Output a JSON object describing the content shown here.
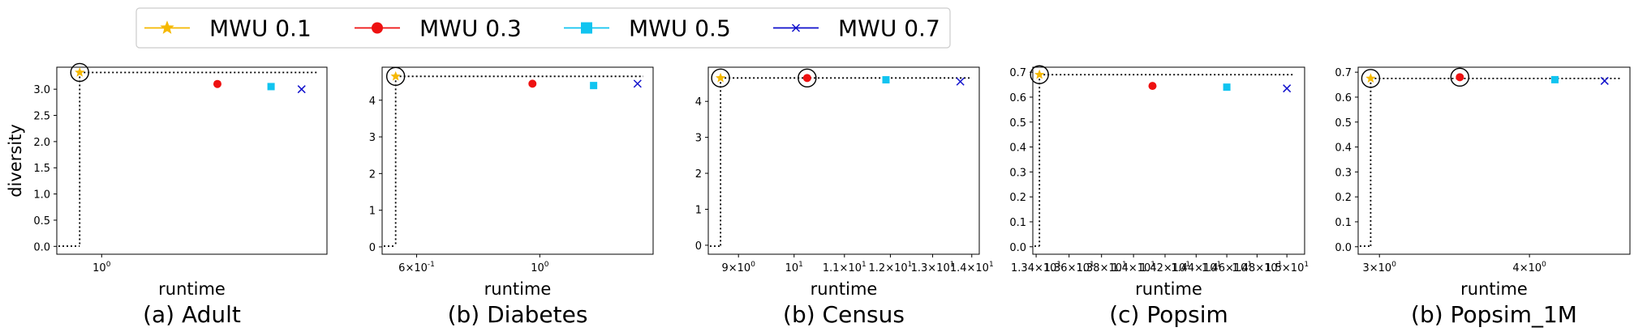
{
  "legend": [
    {
      "name": "MWU 0.1",
      "color": "#f5b800",
      "marker": "star"
    },
    {
      "name": "MWU 0.3",
      "color": "#ee1111",
      "marker": "circle"
    },
    {
      "name": "MWU 0.5",
      "color": "#11c4f0",
      "marker": "square"
    },
    {
      "name": "MWU 0.7",
      "color": "#1010cc",
      "marker": "x"
    }
  ],
  "chart_data": [
    {
      "type": "scatter",
      "caption": "(a) Adult",
      "xlabel": "runtime",
      "ylabel": "diversity",
      "xscale": "log",
      "xlim": [
        0.92,
        1.52
      ],
      "ylim": [
        -0.15,
        3.42
      ],
      "xticks": [
        {
          "value": 1.0,
          "label": "10^0"
        }
      ],
      "yticks": [
        0.0,
        0.5,
        1.0,
        1.5,
        2.0,
        2.5,
        3.0
      ],
      "ytick_labels": [
        "0.0",
        "0.5",
        "1.0",
        "1.5",
        "2.0",
        "2.5",
        "3.0"
      ],
      "series": [
        {
          "name": "MWU 0.1",
          "x": [
            0.96
          ],
          "y": [
            3.32
          ]
        },
        {
          "name": "MWU 0.3",
          "x": [
            1.24
          ],
          "y": [
            3.1
          ]
        },
        {
          "name": "MWU 0.5",
          "x": [
            1.37
          ],
          "y": [
            3.05
          ]
        },
        {
          "name": "MWU 0.7",
          "x": [
            1.45
          ],
          "y": [
            3.0
          ]
        }
      ],
      "highlight": [
        {
          "x": 0.96,
          "y": 3.32
        }
      ],
      "pareto": {
        "x": 0.96,
        "y": 3.32
      }
    },
    {
      "type": "scatter",
      "caption": "(b) Diabetes",
      "xlabel": "runtime",
      "ylabel": "",
      "xscale": "log",
      "xlim": [
        0.52,
        1.6
      ],
      "ylim": [
        -0.2,
        4.9
      ],
      "xticks": [
        {
          "value": 0.6,
          "label": "6×10^-1"
        },
        {
          "value": 1.0,
          "label": "10^0"
        }
      ],
      "yticks": [
        0,
        1,
        2,
        3,
        4
      ],
      "ytick_labels": [
        "0",
        "1",
        "2",
        "3",
        "4"
      ],
      "series": [
        {
          "name": "MWU 0.1",
          "x": [
            0.55
          ],
          "y": [
            4.65
          ]
        },
        {
          "name": "MWU 0.3",
          "x": [
            0.97
          ],
          "y": [
            4.45
          ]
        },
        {
          "name": "MWU 0.5",
          "x": [
            1.25
          ],
          "y": [
            4.4
          ]
        },
        {
          "name": "MWU 0.7",
          "x": [
            1.5
          ],
          "y": [
            4.45
          ]
        }
      ],
      "highlight": [
        {
          "x": 0.55,
          "y": 4.65
        }
      ],
      "pareto": {
        "x": 0.55,
        "y": 4.65
      }
    },
    {
      "type": "scatter",
      "caption": "(b) Census",
      "xlabel": "runtime",
      "ylabel": "",
      "xscale": "log",
      "xlim": [
        8.5,
        14.2
      ],
      "ylim": [
        -0.25,
        4.95
      ],
      "xticks": [
        {
          "value": 9,
          "label": "9×10^0"
        },
        {
          "value": 10,
          "label": "10^1"
        },
        {
          "value": 11,
          "label": "1.1×10^1"
        },
        {
          "value": 12,
          "label": "1.2×10^1"
        },
        {
          "value": 13,
          "label": "1.3×10^1"
        },
        {
          "value": 14,
          "label": "1.4×10^1"
        }
      ],
      "yticks": [
        0,
        1,
        2,
        3,
        4
      ],
      "ytick_labels": [
        "0",
        "1",
        "2",
        "3",
        "4"
      ],
      "series": [
        {
          "name": "MWU 0.1",
          "x": [
            8.7
          ],
          "y": [
            4.65
          ]
        },
        {
          "name": "MWU 0.3",
          "x": [
            10.25
          ],
          "y": [
            4.65
          ]
        },
        {
          "name": "MWU 0.5",
          "x": [
            11.9
          ],
          "y": [
            4.6
          ]
        },
        {
          "name": "MWU 0.7",
          "x": [
            13.7
          ],
          "y": [
            4.55
          ]
        }
      ],
      "highlight": [
        {
          "x": 8.7,
          "y": 4.65
        },
        {
          "x": 10.25,
          "y": 4.65
        }
      ],
      "pareto": {
        "x": 8.7,
        "y": 4.65
      }
    },
    {
      "type": "scatter",
      "caption": "(c) Popsim",
      "xlabel": "runtime",
      "ylabel": "",
      "xscale": "log",
      "xlim": [
        13.38,
        15.12
      ],
      "ylim": [
        -0.03,
        0.72
      ],
      "xticks": [
        {
          "value": 13.4,
          "label": "1.34×10^1"
        },
        {
          "value": 13.6,
          "label": "1.36×10^1"
        },
        {
          "value": 13.8,
          "label": "1.38×10^1"
        },
        {
          "value": 14.0,
          "label": "1.4×10^1"
        },
        {
          "value": 14.2,
          "label": "1.42×10^1"
        },
        {
          "value": 14.4,
          "label": "1.44×10^1"
        },
        {
          "value": 14.6,
          "label": "1.46×10^1"
        },
        {
          "value": 14.8,
          "label": "1.48×10^1"
        },
        {
          "value": 15.0,
          "label": "1.5×10^1"
        }
      ],
      "yticks": [
        0.0,
        0.1,
        0.2,
        0.3,
        0.4,
        0.5,
        0.6,
        0.7
      ],
      "ytick_labels": [
        "0.0",
        "0.1",
        "0.2",
        "0.3",
        "0.4",
        "0.5",
        "0.6",
        "0.7"
      ],
      "series": [
        {
          "name": "MWU 0.1",
          "x": [
            13.42
          ],
          "y": [
            0.69
          ]
        },
        {
          "name": "MWU 0.3",
          "x": [
            14.12
          ],
          "y": [
            0.645
          ]
        },
        {
          "name": "MWU 0.5",
          "x": [
            14.6
          ],
          "y": [
            0.64
          ]
        },
        {
          "name": "MWU 0.7",
          "x": [
            15.0
          ],
          "y": [
            0.635
          ]
        }
      ],
      "highlight": [
        {
          "x": 13.42,
          "y": 0.69
        }
      ],
      "pareto": {
        "x": 13.42,
        "y": 0.69
      }
    },
    {
      "type": "scatter",
      "caption": "(b) Popsim_1M",
      "xlabel": "runtime",
      "ylabel": "",
      "xscale": "log",
      "xlim": [
        2.88,
        4.85
      ],
      "ylim": [
        -0.03,
        0.72
      ],
      "xticks": [
        {
          "value": 3,
          "label": "3×10^0"
        },
        {
          "value": 4,
          "label": "4×10^0"
        }
      ],
      "yticks": [
        0.0,
        0.1,
        0.2,
        0.3,
        0.4,
        0.5,
        0.6,
        0.7
      ],
      "ytick_labels": [
        "0.0",
        "0.1",
        "0.2",
        "0.3",
        "0.4",
        "0.5",
        "0.6",
        "0.7"
      ],
      "series": [
        {
          "name": "MWU 0.1",
          "x": [
            2.95
          ],
          "y": [
            0.675
          ]
        },
        {
          "name": "MWU 0.3",
          "x": [
            3.5
          ],
          "y": [
            0.68
          ]
        },
        {
          "name": "MWU 0.5",
          "x": [
            4.2
          ],
          "y": [
            0.67
          ]
        },
        {
          "name": "MWU 0.7",
          "x": [
            4.62
          ],
          "y": [
            0.665
          ]
        }
      ],
      "highlight": [
        {
          "x": 2.95,
          "y": 0.675
        },
        {
          "x": 3.5,
          "y": 0.68
        }
      ],
      "pareto": {
        "x": 2.95,
        "y": 0.675
      }
    }
  ]
}
